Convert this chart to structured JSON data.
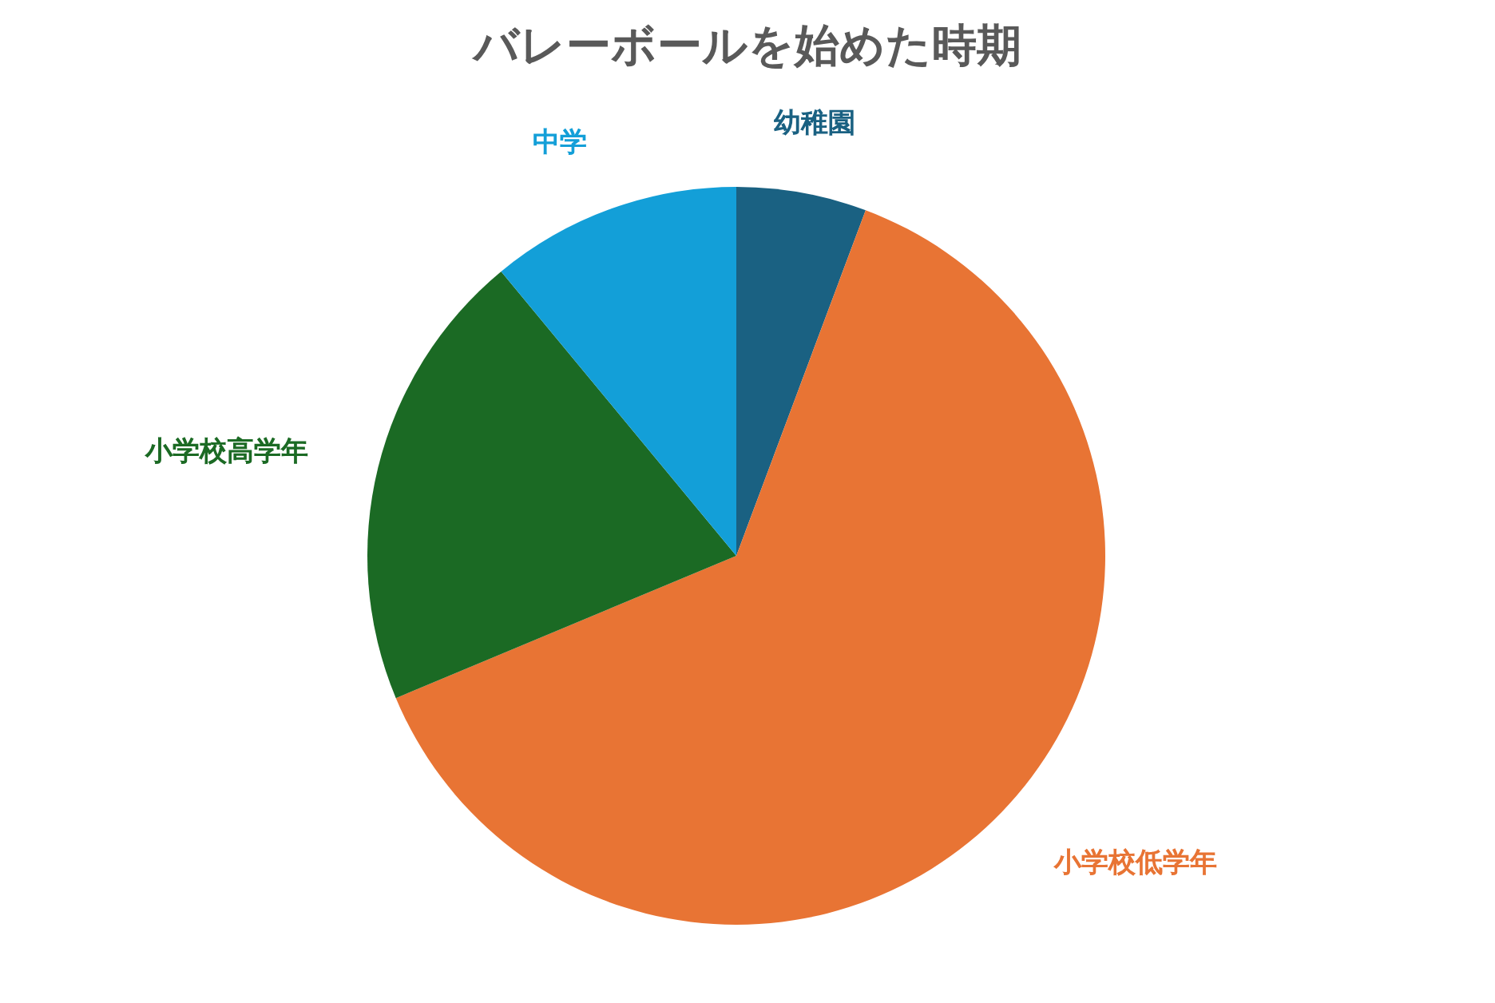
{
  "chart_data": {
    "type": "pie",
    "title": "バレーボールを始めた時期",
    "categories": [
      "幼稚園",
      "小学校低学年",
      "小学校高学年",
      "中学"
    ],
    "values": [
      5.7,
      63,
      20.3,
      11
    ],
    "colors": [
      "#1a6182",
      "#e87434",
      "#1b6a24",
      "#139fd8"
    ]
  }
}
